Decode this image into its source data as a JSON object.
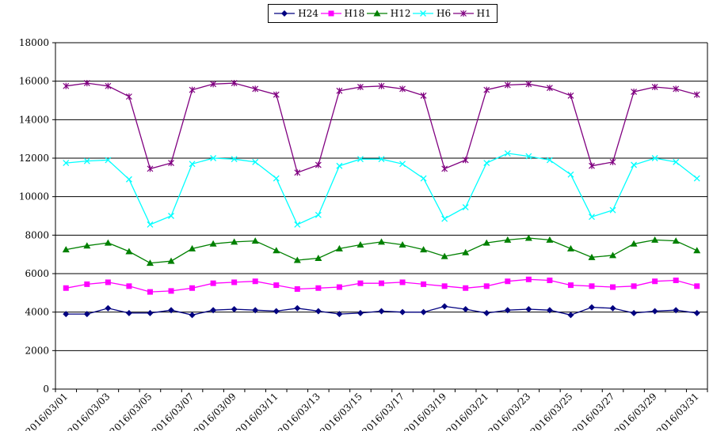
{
  "chart_data": {
    "type": "line",
    "title": "",
    "xlabel": "",
    "ylabel": "",
    "ylim": [
      0,
      18000
    ],
    "yticks": [
      0,
      2000,
      4000,
      6000,
      8000,
      10000,
      12000,
      14000,
      16000,
      18000
    ],
    "grid": "horizontal",
    "legend_position": "top",
    "x": [
      "2016/03/01",
      "2016/03/02",
      "2016/03/03",
      "2016/03/04",
      "2016/03/05",
      "2016/03/06",
      "2016/03/07",
      "2016/03/08",
      "2016/03/09",
      "2016/03/10",
      "2016/03/11",
      "2016/03/12",
      "2016/03/13",
      "2016/03/14",
      "2016/03/15",
      "2016/03/16",
      "2016/03/17",
      "2016/03/18",
      "2016/03/19",
      "2016/03/20",
      "2016/03/21",
      "2016/03/22",
      "2016/03/23",
      "2016/03/24",
      "2016/03/25",
      "2016/03/26",
      "2016/03/27",
      "2016/03/28",
      "2016/03/29",
      "2016/03/30",
      "2016/03/31"
    ],
    "x_tick_labels": [
      "2016/03/01",
      "2016/03/03",
      "2016/03/05",
      "2016/03/07",
      "2016/03/09",
      "2016/03/11",
      "2016/03/13",
      "2016/03/15",
      "2016/03/17",
      "2016/03/19",
      "2016/03/21",
      "2016/03/23",
      "2016/03/25",
      "2016/03/27",
      "2016/03/29",
      "2016/03/31"
    ],
    "series": [
      {
        "name": "H24",
        "color": "#000080",
        "marker": "diamond",
        "values": [
          3900,
          3900,
          4200,
          3950,
          3950,
          4100,
          3850,
          4100,
          4150,
          4100,
          4050,
          4200,
          4050,
          3900,
          3950,
          4050,
          4000,
          4000,
          4300,
          4150,
          3950,
          4100,
          4150,
          4100,
          3850,
          4250,
          4200,
          3950,
          4050,
          4100,
          3950
        ]
      },
      {
        "name": "H18",
        "color": "#FF00FF",
        "marker": "square",
        "values": [
          5250,
          5450,
          5550,
          5350,
          5050,
          5100,
          5250,
          5500,
          5550,
          5600,
          5400,
          5200,
          5250,
          5300,
          5500,
          5500,
          5550,
          5450,
          5350,
          5250,
          5350,
          5600,
          5700,
          5650,
          5400,
          5350,
          5300,
          5350,
          5600,
          5650,
          5350
        ]
      },
      {
        "name": "H12",
        "color": "#008000",
        "marker": "triangle",
        "values": [
          7250,
          7450,
          7600,
          7150,
          6550,
          6650,
          7300,
          7550,
          7650,
          7700,
          7200,
          6700,
          6800,
          7300,
          7500,
          7650,
          7500,
          7250,
          6900,
          7100,
          7600,
          7750,
          7850,
          7750,
          7300,
          6850,
          6950,
          7550,
          7750,
          7700,
          7200
        ]
      },
      {
        "name": "H6",
        "color": "#00FFFF",
        "marker": "x",
        "values": [
          11750,
          11850,
          11900,
          10900,
          8550,
          9000,
          11700,
          12000,
          11950,
          11800,
          10950,
          8550,
          9050,
          11600,
          11950,
          11950,
          11700,
          10950,
          8850,
          9450,
          11750,
          12250,
          12100,
          11900,
          11150,
          8950,
          9300,
          11650,
          12000,
          11800,
          10950
        ]
      },
      {
        "name": "H1",
        "color": "#800080",
        "marker": "star",
        "values": [
          15750,
          15900,
          15750,
          15200,
          11450,
          11750,
          15550,
          15850,
          15900,
          15600,
          15300,
          11250,
          11650,
          15500,
          15700,
          15750,
          15600,
          15250,
          11450,
          11900,
          15550,
          15800,
          15850,
          15650,
          15250,
          11600,
          11800,
          15450,
          15700,
          15600,
          15300
        ]
      }
    ]
  }
}
